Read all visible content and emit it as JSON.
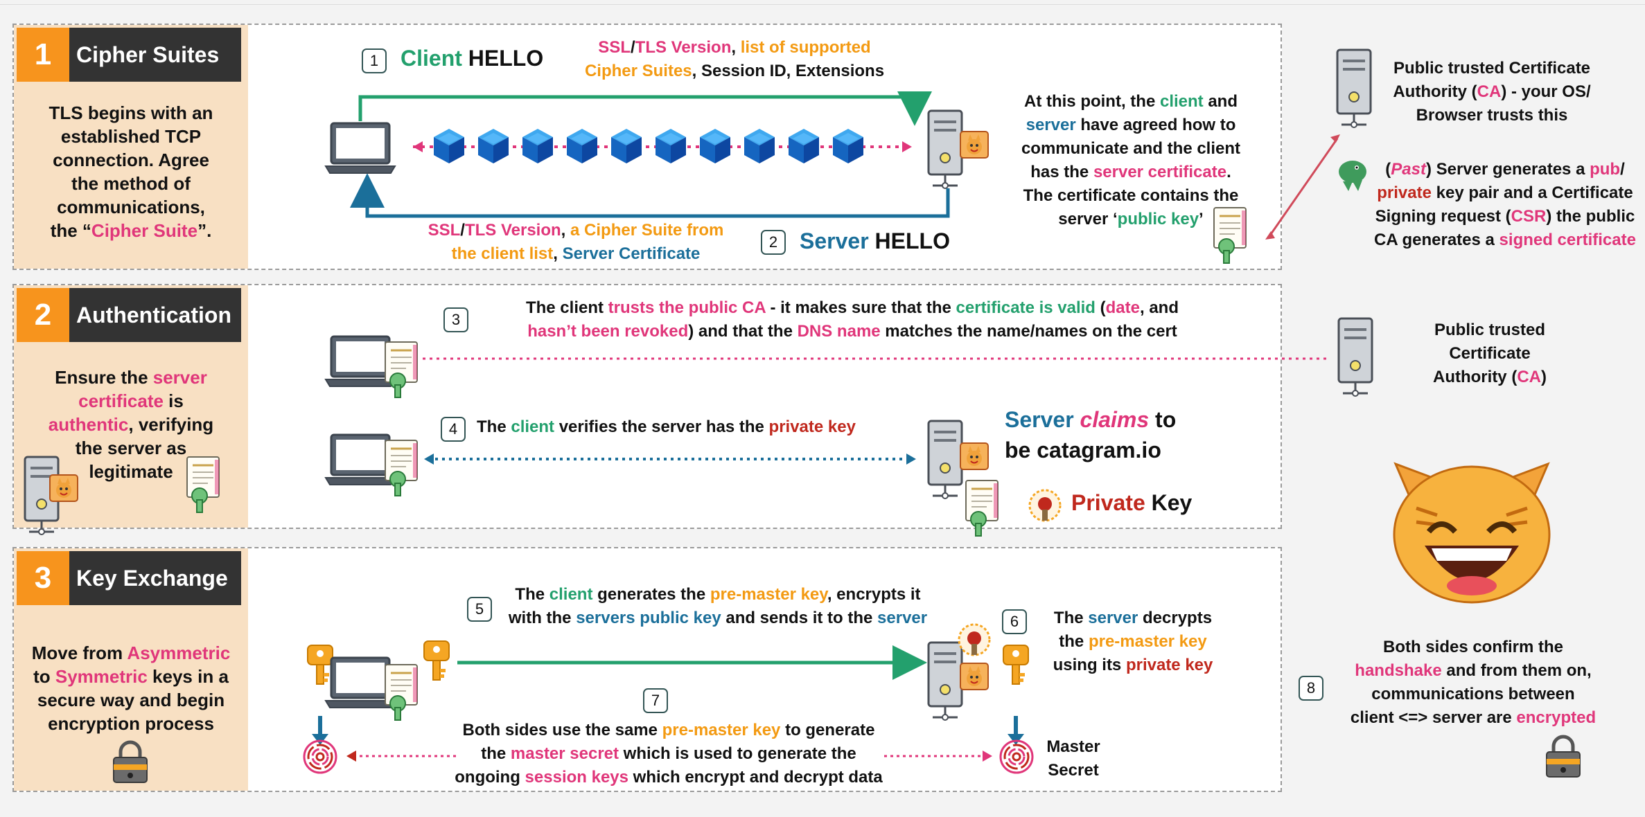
{
  "sections": [
    {
      "num": "1",
      "title": "Cipher Suites",
      "desc": [
        "TLS begins with an",
        "established TCP",
        "connection. Agree",
        "the method of",
        "communications,"
      ],
      "desc_last_pre": "the “",
      "desc_last_hl": "Cipher Suite",
      "desc_last_post": "”."
    },
    {
      "num": "2",
      "title": "Authentication",
      "desc": {
        "l1": "Ensure the ",
        "l1h": "server",
        "l2h": "certificate",
        "l2": " is",
        "l3h": "authentic",
        "l3": ", verifying",
        "l4": "the server as",
        "l5": "legitimate"
      }
    },
    {
      "num": "3",
      "title": "Key Exchange",
      "desc": {
        "l1": "Move from ",
        "l1h": "Asymmetric",
        "l2": "to ",
        "l2h": "Symmetric",
        "l2b": " keys in a",
        "l3": "secure way and begin",
        "l4": "encryption process"
      }
    }
  ],
  "s1": {
    "step1": "1",
    "client_hello_a": "Client",
    "client_hello_b": "HELLO",
    "ch_ssl": "SSL",
    "ch_slash": "/",
    "ch_tls": "TLS Version",
    "ch_comma": ", ",
    "ch_list": "list of supported",
    "ch_cipher": "Cipher Suites",
    "ch_rest": ", Session ID, Extensions",
    "step2": "2",
    "server_hello_a": "Server",
    "server_hello_b": "HELLO",
    "sh_ssl": "SSL",
    "sh_slash": "/",
    "sh_tls": "TLS Version",
    "sh_comma": ", ",
    "sh_cipher": "a Cipher Suite from",
    "sh_client": "the client list",
    "sh_comma2": ", ",
    "sh_cert": "Server Certificate",
    "note": {
      "a1": "At this point, the ",
      "a1h": "client",
      "a1b": " and",
      "a2h": "server",
      "a2": " have agreed how to",
      "a3": "communicate and the client",
      "a4": "has the ",
      "a4h": "server certificate",
      "a4b": ".",
      "a5": "The certificate contains the",
      "a6": "server ‘",
      "a6h": "public key",
      "a6b": "’"
    },
    "ca": {
      "l1": "Public trusted Certificate",
      "l2": "Authority (",
      "l2h": "CA",
      "l2b": ") - your OS/",
      "l3": "Browser trusts this"
    },
    "past": {
      "p1a": "(",
      "p1h": "Past",
      "p1b": ") Server generates a ",
      "p1c": "pub",
      "p1d": "/",
      "p2h": "private",
      "p2": " key pair and a Certificate",
      "p3": "Signing request (",
      "p3h": "CSR",
      "p3b": ") the public",
      "p4": "CA generates a ",
      "p4h": "signed certificate"
    }
  },
  "s2": {
    "step3": "3",
    "t3a": "The client ",
    "t3b": "trusts the public CA",
    "t3c": " - it makes sure that the ",
    "t3d": "certificate is valid",
    "t3e": " (",
    "t3f": "date",
    "t3g": ", and",
    "t3h": "hasn’t been revoked",
    "t3i": ") and that the ",
    "t3j": "DNS name",
    "t3k": " matches the name/names on the cert",
    "step4": "4",
    "t4a": "The ",
    "t4b": "client",
    "t4c": " verifies the server has the ",
    "t4d": "private key",
    "claims_a": "Server ",
    "claims_b": "claims",
    "claims_c": " to",
    "claims_d": "be catagram.io",
    "pk_a": "Private",
    "pk_b": " Key",
    "ca": {
      "l1": "Public trusted",
      "l2": "Certificate",
      "l3": "Authority (",
      "l3h": "CA",
      "l3b": ")"
    }
  },
  "s3": {
    "step5": "5",
    "t5a": "The ",
    "t5b": "client",
    "t5c": " generates the ",
    "t5d": "pre-master key",
    "t5e": ", encrypts it",
    "t5f": "with the ",
    "t5g": "servers public key",
    "t5h": " and sends it to the ",
    "t5i": "server",
    "step6": "6",
    "t6a": "The ",
    "t6b": "server",
    "t6c": " decrypts",
    "t6d": "the ",
    "t6e": "pre-master key",
    "t6f": "using its ",
    "t6g": "private key",
    "step7": "7",
    "t7a": "Both sides use the same ",
    "t7b": "pre-master key",
    "t7c": " to generate",
    "t7d": "the ",
    "t7e": "master secret",
    "t7f": " which is used to generate the",
    "t7g": "ongoing ",
    "t7h": "session keys",
    "t7i": " which encrypt and decrypt data",
    "master1": "Master",
    "master2": "Secret",
    "step8": "8",
    "t8a": "Both sides confirm the",
    "t8b": "handshake",
    "t8c": " and from them on,",
    "t8d": "communications between",
    "t8e": "client <=> server are ",
    "t8f": "encrypted"
  },
  "colors": {
    "pink": "#e0367a",
    "orange": "#f39a12",
    "green": "#23a06d",
    "blue": "#1b6f9a",
    "red": "#c0281d",
    "sidebar": "#f8e0c3",
    "accent": "#f7941d"
  }
}
